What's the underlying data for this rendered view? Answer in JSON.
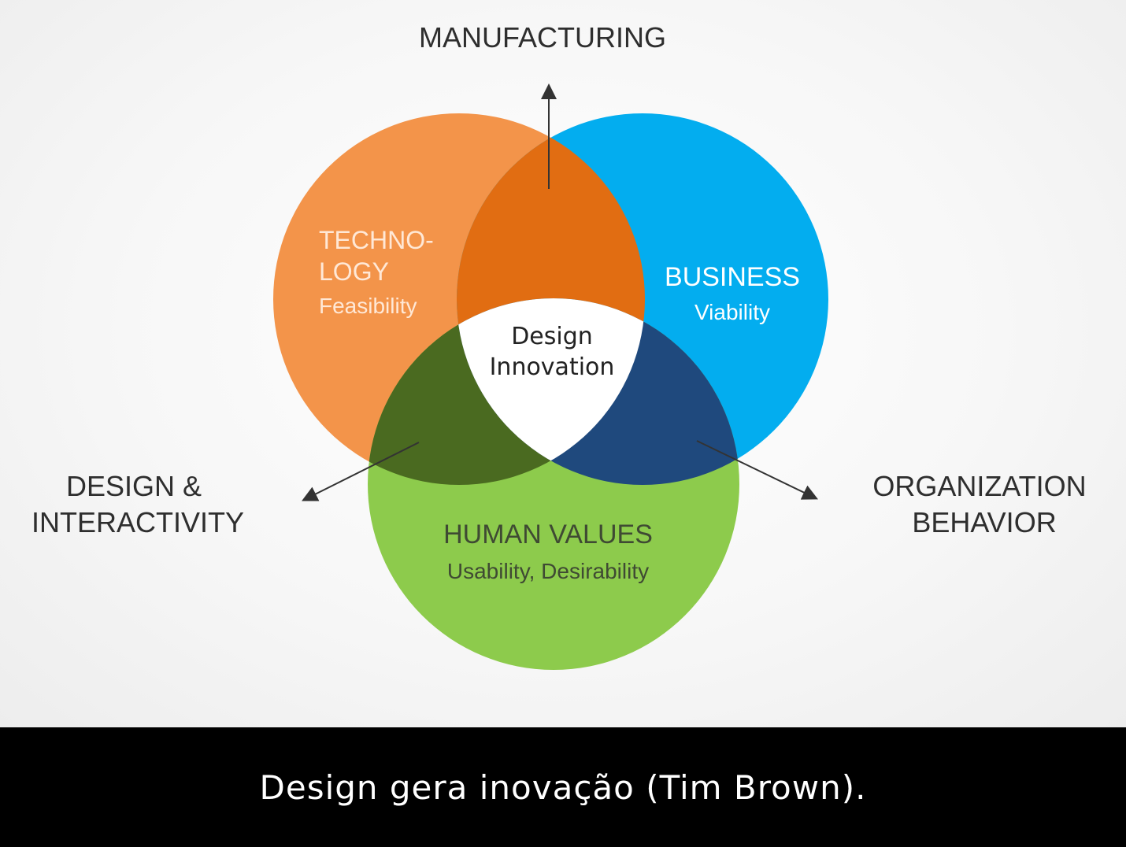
{
  "colors": {
    "technology": "#f3944a",
    "business": "#03adef",
    "human_values": "#8dcb4c",
    "tech_business": "#e16d12",
    "tech_human": "#4a6a20",
    "business_human": "#1f497d",
    "center": "#ffffff",
    "arrow": "#333333",
    "caption_bg": "#000000",
    "caption_text": "#ffffff"
  },
  "circles": {
    "technology": {
      "title_line1": "TECHNO-",
      "title_line2": "LOGY",
      "subtitle": "Feasibility"
    },
    "business": {
      "title": "BUSINESS",
      "subtitle": "Viability"
    },
    "human_values": {
      "title": "HUMAN VALUES",
      "subtitle": "Usability, Desirability"
    },
    "center": {
      "line1": "Design",
      "line2": "Innovation"
    }
  },
  "outer_labels": {
    "manufacturing": "MANUFACTURING",
    "design_interactivity_line1": "DESIGN &",
    "design_interactivity_line2": "INTERACTIVITY",
    "organization_line1": "ORGANIZATION",
    "organization_line2": "BEHAVIOR"
  },
  "caption": "Design gera inovação (Tim Brown)."
}
